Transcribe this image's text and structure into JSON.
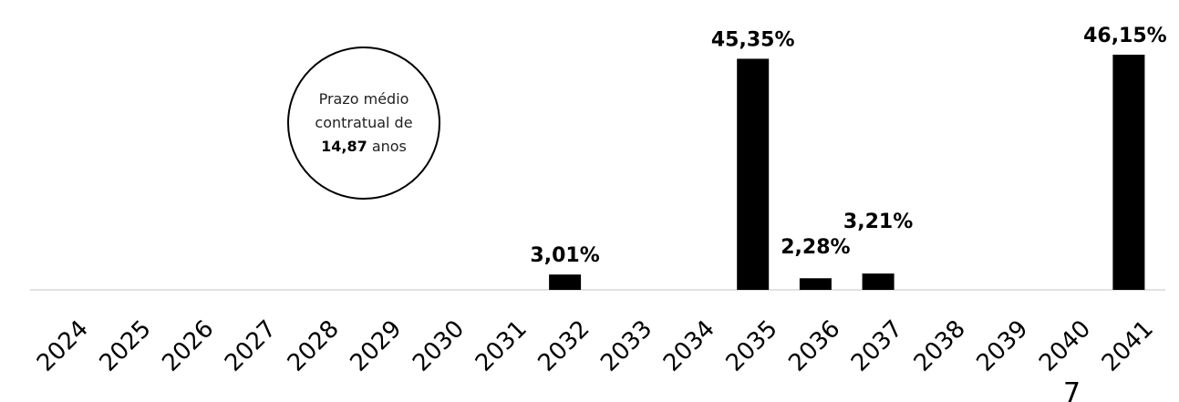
{
  "chart_data": {
    "type": "bar",
    "categories": [
      "2024",
      "2025",
      "2026",
      "2027",
      "2028",
      "2029",
      "2030",
      "2031",
      "2032",
      "2033",
      "2034",
      "2035",
      "2036",
      "2037",
      "2038",
      "2039",
      "2040",
      "2041"
    ],
    "values": [
      0,
      0,
      0,
      0,
      0,
      0,
      0,
      0,
      3.01,
      0,
      0,
      45.35,
      2.28,
      3.21,
      0,
      0,
      0,
      46.15
    ],
    "data_labels": {
      "2032": "3,01%",
      "2035": "45,35%",
      "2036": "2,28%",
      "2037": "3,21%",
      "2041": "46,15%"
    },
    "ylim": [
      0,
      50
    ],
    "grid": false,
    "legend": "none",
    "bar_color": "#000000"
  },
  "callout": {
    "line1": "Prazo médio",
    "line2": "contratual de",
    "value": "14,87",
    "unit": "anos"
  },
  "stray_mark": "7"
}
